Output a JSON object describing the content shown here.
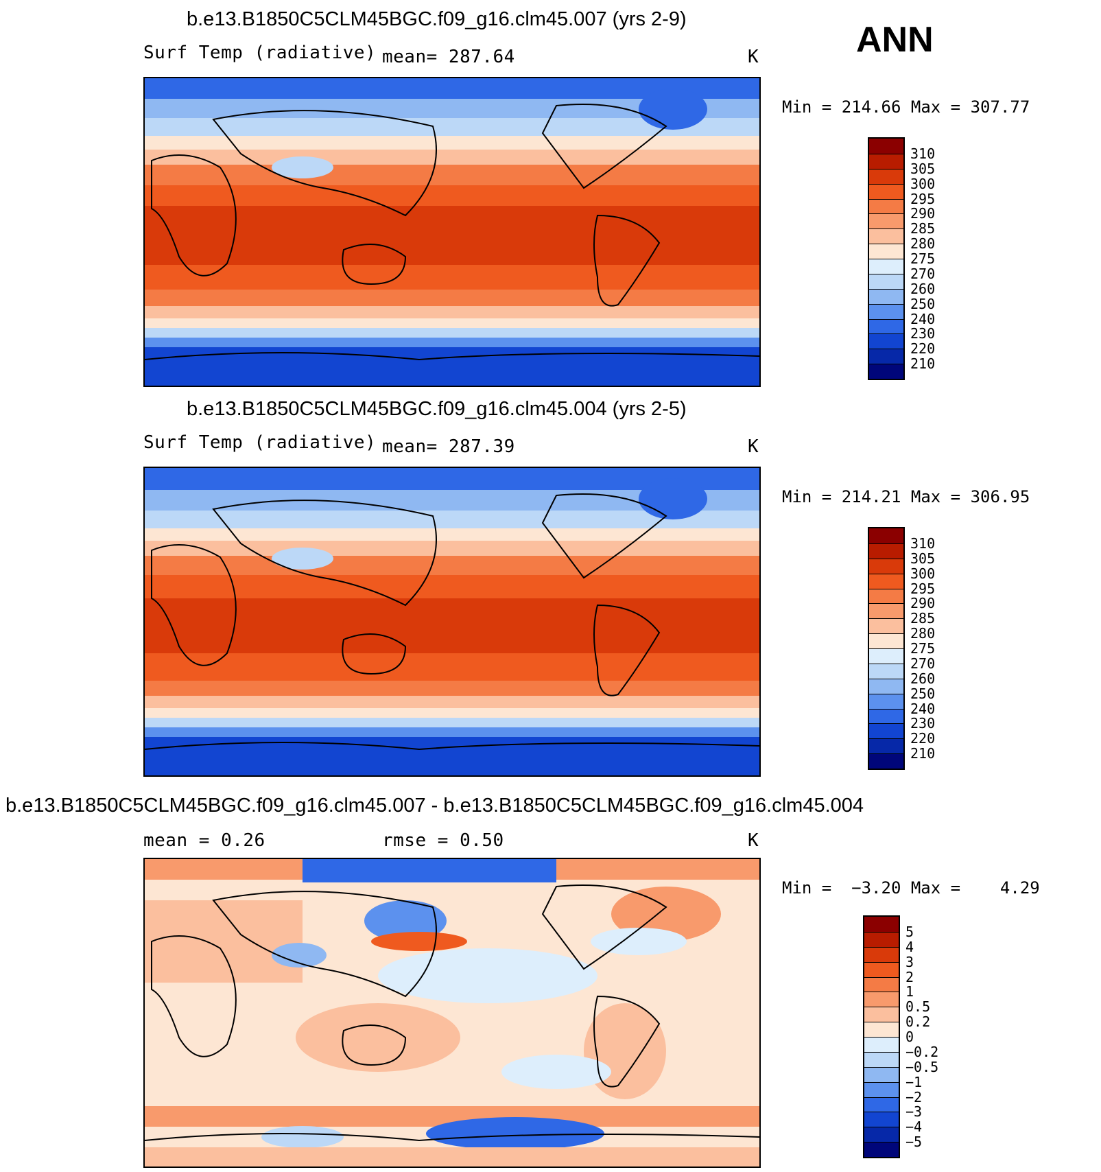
{
  "ann_label": "ANN",
  "panels": [
    {
      "title": "b.e13.B1850C5CLM45BGC.f09_g16.clm45.007 (yrs 2-9)",
      "variable": "Surf Temp (radiative)",
      "stat": "mean=  287.64",
      "units": "K",
      "min_label": "Min",
      "min_value": "214.66",
      "max_label": "Max",
      "max_value": "307.77",
      "colorbar": {
        "labels": [
          "310",
          "305",
          "300",
          "295",
          "290",
          "285",
          "280",
          "275",
          "270",
          "260",
          "250",
          "240",
          "230",
          "220",
          "210"
        ],
        "colors": [
          "#8b0000",
          "#b81c00",
          "#d93a0a",
          "#ef5a1f",
          "#f47b45",
          "#f89a6c",
          "#fbbf9e",
          "#fde6d3",
          "#ddeefc",
          "#bcd8f7",
          "#8fb8f2",
          "#5c91ee",
          "#2f68e6",
          "#1245d1",
          "#0628a8",
          "#00067a"
        ]
      }
    },
    {
      "title": "b.e13.B1850C5CLM45BGC.f09_g16.clm45.004 (yrs 2-5)",
      "variable": "Surf Temp (radiative)",
      "stat": "mean=  287.39",
      "units": "K",
      "min_label": "Min",
      "min_value": "214.21",
      "max_label": "Max",
      "max_value": "306.95",
      "colorbar": {
        "labels": [
          "310",
          "305",
          "300",
          "295",
          "290",
          "285",
          "280",
          "275",
          "270",
          "260",
          "250",
          "240",
          "230",
          "220",
          "210"
        ],
        "colors": [
          "#8b0000",
          "#b81c00",
          "#d93a0a",
          "#ef5a1f",
          "#f47b45",
          "#f89a6c",
          "#fbbf9e",
          "#fde6d3",
          "#ddeefc",
          "#bcd8f7",
          "#8fb8f2",
          "#5c91ee",
          "#2f68e6",
          "#1245d1",
          "#0628a8",
          "#00067a"
        ]
      }
    },
    {
      "title": "b.e13.B1850C5CLM45BGC.f09_g16.clm45.007 - b.e13.B1850C5CLM45BGC.f09_g16.clm45.004",
      "stat_mean": "mean =     0.26",
      "stat_rmse": "rmse =     0.50",
      "units": "K",
      "min_label": "Min",
      "min_value": "−3.20",
      "max_label": "Max",
      "max_value": "4.29",
      "colorbar": {
        "labels": [
          "5",
          "4",
          "3",
          "2",
          "1",
          "0.5",
          "0.2",
          "0",
          "−0.2",
          "−0.5",
          "−1",
          "−2",
          "−3",
          "−4",
          "−5"
        ],
        "colors": [
          "#8b0000",
          "#b81c00",
          "#d93a0a",
          "#ef5a1f",
          "#f47b45",
          "#f89a6c",
          "#fbbf9e",
          "#fde6d3",
          "#ddeefc",
          "#bcd8f7",
          "#8fb8f2",
          "#5c91ee",
          "#2f68e6",
          "#1245d1",
          "#0628a8",
          "#00067a"
        ]
      }
    }
  ]
}
